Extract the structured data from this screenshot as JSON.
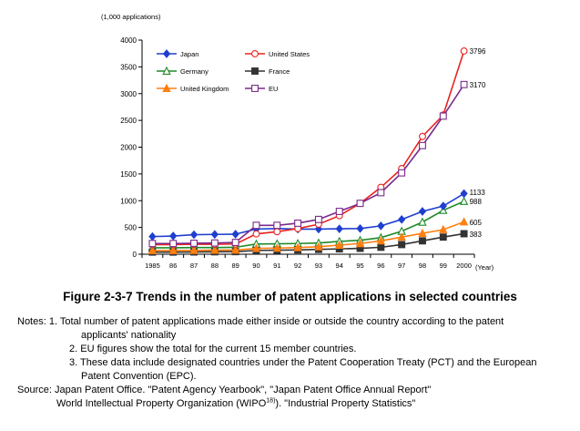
{
  "chart_data": {
    "type": "line",
    "ylabel": "(1,000 applications)",
    "xlabel": "(Year)",
    "ylim": [
      0,
      4000
    ],
    "yticks": [
      0,
      500,
      1000,
      1500,
      2000,
      2500,
      3000,
      3500,
      4000
    ],
    "ytick_labels": [
      "0",
      "500",
      "1000",
      "1500",
      "2000",
      "2500",
      "3000",
      "3500",
      "4000"
    ],
    "categories": [
      "1985",
      "86",
      "87",
      "88",
      "89",
      "90",
      "91",
      "92",
      "93",
      "94",
      "95",
      "96",
      "97",
      "98",
      "99",
      "2000"
    ],
    "legend_placement": "top-left",
    "grid": false,
    "series": [
      {
        "name": "Japan",
        "color": "#1f3fd0",
        "marker": "diamond-filled",
        "values": [
          330,
          340,
          365,
          370,
          375,
          470,
          480,
          470,
          470,
          475,
          480,
          530,
          650,
          800,
          900,
          1133
        ],
        "end_label": "1133"
      },
      {
        "name": "United States",
        "color": "#e8231f",
        "marker": "circle-open",
        "values": [
          180,
          180,
          185,
          185,
          190,
          380,
          420,
          480,
          560,
          720,
          950,
          1250,
          1600,
          2200,
          2600,
          3796
        ],
        "end_label": "3796"
      },
      {
        "name": "Germany",
        "color": "#1f8a2a",
        "marker": "triangle-open",
        "values": [
          120,
          120,
          125,
          125,
          130,
          190,
          195,
          200,
          210,
          240,
          260,
          310,
          430,
          600,
          820,
          988
        ],
        "end_label": "988"
      },
      {
        "name": "France",
        "color": "#333333",
        "marker": "square-filled",
        "values": [
          40,
          40,
          42,
          45,
          48,
          70,
          75,
          80,
          90,
          100,
          110,
          130,
          180,
          250,
          320,
          383
        ],
        "end_label": "383"
      },
      {
        "name": "United Kingdom",
        "color": "#ff7f10",
        "marker": "triangle-filled",
        "values": [
          70,
          70,
          72,
          75,
          78,
          110,
          115,
          125,
          140,
          170,
          200,
          250,
          320,
          390,
          460,
          605
        ],
        "end_label": "605"
      },
      {
        "name": "EU",
        "color": "#7a2a8a",
        "marker": "square-open",
        "values": [
          200,
          200,
          205,
          210,
          220,
          540,
          540,
          580,
          650,
          800,
          950,
          1150,
          1520,
          2030,
          2580,
          3170
        ],
        "end_label": "3170"
      }
    ]
  },
  "caption": "Figure 2-3-7  Trends in the number of patent applications in selected countries",
  "notes": {
    "n1a": "Notes: 1. Total number of patent applications made either inside or outside the country according to the patent",
    "n1b": "applicants' nationality",
    "n2": "2. EU figures show the total for the current 15 member countries.",
    "n3a": "3. These data include designated countries under the Patent Cooperation Treaty (PCT) and the European",
    "n3b": "Patent Convention (EPC).",
    "s1": "Source: Japan Patent Office. \"Patent Agency Yearbook\", \"Japan Patent Office Annual Report\"",
    "s2a": "World Intellectual Property Organization (WIPO",
    "s2sup": "18)",
    "s2b": "). \"Industrial Property Statistics\""
  }
}
